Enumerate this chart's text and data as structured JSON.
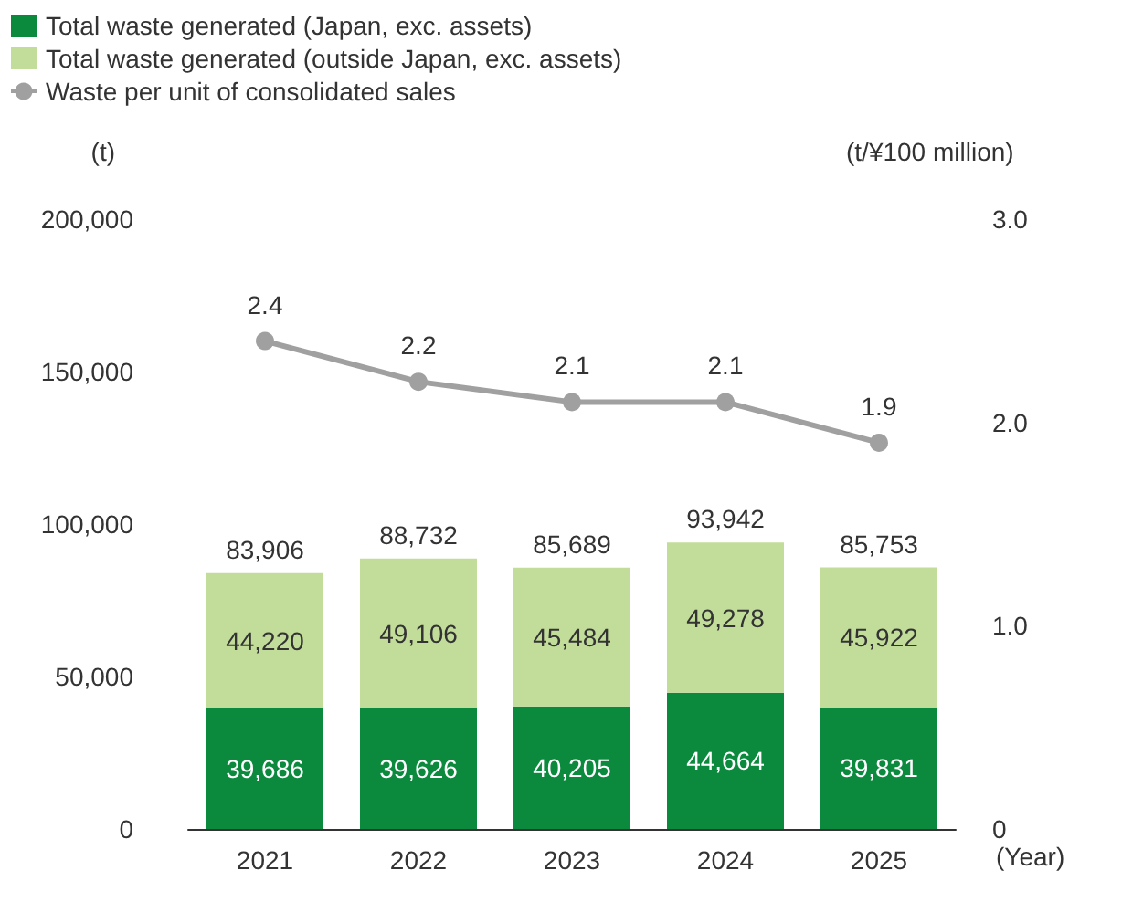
{
  "chart_data": {
    "type": "bar",
    "stacked": true,
    "categories": [
      "2021",
      "2022",
      "2023",
      "2024",
      "2025"
    ],
    "xlabel": "(Year)",
    "ylabel": "(t)",
    "y2label": "(t/¥100 million)",
    "series": [
      {
        "name": "Total waste generated (Japan, exc. assets)",
        "color": "#0b8a3e",
        "values": [
          39686,
          39626,
          40205,
          44664,
          39831
        ],
        "value_labels": [
          "39,686",
          "39,626",
          "40,205",
          "44,664",
          "39,831"
        ]
      },
      {
        "name": "Total waste generated (outside Japan, exc. assets)",
        "color": "#c2dd9a",
        "values": [
          44220,
          49106,
          45484,
          49278,
          45922
        ],
        "value_labels": [
          "44,220",
          "49,106",
          "45,484",
          "49,278",
          "45,922"
        ]
      },
      {
        "name": "Waste per unit of consolidated sales",
        "type": "line",
        "axis": "y2",
        "color": "#a0a0a0",
        "marker": "circle",
        "values": [
          2.4,
          2.2,
          2.1,
          2.1,
          1.9
        ]
      }
    ],
    "totals": [
      "83,906",
      "88,732",
      "85,689",
      "93,942",
      "85,753"
    ],
    "data_labels": true,
    "legend": "top left",
    "grid": false,
    "ylim": [
      0,
      200000
    ],
    "yticks": [
      0,
      {
        "value": 50000,
        "label": "50,000"
      },
      {
        "value": 100000,
        "label": "100,000"
      },
      {
        "value": 150000,
        "label": "150,000"
      },
      {
        "value": 200000,
        "label": "200,000"
      }
    ],
    "y2lim": [
      0,
      3
    ],
    "y2ticks": [
      0,
      {
        "value": 1,
        "label": "1.0"
      },
      {
        "value": 2,
        "label": "2.0"
      },
      {
        "value": 3,
        "label": "3.0"
      }
    ]
  }
}
